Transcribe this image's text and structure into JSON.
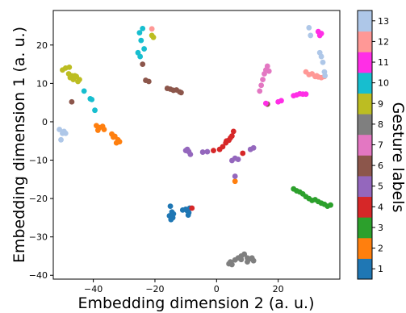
{
  "chart_data": {
    "type": "scatter",
    "xlabel": "Embedding dimension 2 (a. u.)",
    "ylabel": "Embedding dimension 1 (a. u.)",
    "xlim": [
      -53,
      40
    ],
    "ylim": [
      -41,
      29
    ],
    "xticks": [
      -40,
      -20,
      0,
      20
    ],
    "yticks": [
      -40,
      -30,
      -20,
      -10,
      0,
      10,
      20
    ],
    "colorbar": {
      "label": "Gesture labels",
      "ticks": [
        1,
        2,
        3,
        4,
        5,
        6,
        7,
        8,
        9,
        10,
        11,
        12,
        13
      ]
    },
    "colors": {
      "1": "#1f77b4",
      "2": "#ff7f0e",
      "3": "#2ca02c",
      "4": "#d62728",
      "5": "#9467bd",
      "6": "#8c564b",
      "7": "#e377c2",
      "8": "#7f7f7f",
      "9": "#bcbd22",
      "10": "#17becf",
      "11": "#ff2ee6",
      "12": "#ff9896",
      "13": "#aec7e8"
    },
    "series": [
      {
        "label": 1,
        "x": [
          -15,
          -14.5,
          -14,
          -14.2,
          -15.3,
          -14.8,
          -11,
          -10,
          -9.5,
          -9,
          -9.2,
          -8.7
        ],
        "y": [
          -22,
          -23.5,
          -24,
          -25,
          -24.5,
          -25.5,
          -23,
          -22.8,
          -23.2,
          -23.7,
          -24.3,
          -22.5
        ]
      },
      {
        "label": 2,
        "x": [
          -39,
          -38,
          -37,
          -36.5,
          -38.5,
          -34,
          -33.5,
          -33,
          -32,
          -31.5,
          -32.5,
          6
        ],
        "y": [
          -1,
          -1.5,
          -1.2,
          -2,
          -2.2,
          -3.2,
          -4,
          -3.8,
          -4.7,
          -5.2,
          -5.5,
          -15.5
        ]
      },
      {
        "label": 3,
        "x": [
          25,
          26,
          27,
          28,
          29,
          30,
          31,
          32,
          33,
          34,
          35,
          36,
          37
        ],
        "y": [
          -17.5,
          -18,
          -18.3,
          -18.8,
          -19.5,
          -20,
          -20.5,
          -20.3,
          -20.8,
          -21.2,
          -21.5,
          -22,
          -21.7
        ]
      },
      {
        "label": 4,
        "x": [
          -1,
          1,
          2,
          3,
          4,
          5,
          5.5,
          4.5,
          3.2,
          8.5,
          -8
        ],
        "y": [
          -7.5,
          -7.2,
          -6.5,
          -5.5,
          -4.8,
          -3.7,
          -2.5,
          -4.2,
          -5,
          -8.2,
          -22.5
        ]
      },
      {
        "label": 5,
        "x": [
          -10,
          -9,
          -8.5,
          -9.5,
          -4.5,
          -3,
          5,
          6,
          7,
          11,
          12,
          6
        ],
        "y": [
          -7.5,
          -7.8,
          -8.5,
          -7.2,
          -7.9,
          -7.8,
          -10.1,
          -9.5,
          -9.8,
          -7.2,
          -6.8,
          -14.2
        ]
      },
      {
        "label": 6,
        "x": [
          -47,
          -24,
          -23,
          -22,
          -16,
          -15,
          -14,
          -13,
          -12,
          -11.5,
          16.5
        ],
        "y": [
          5.2,
          15,
          10.8,
          10.5,
          8.7,
          8.5,
          8.2,
          8.3,
          7.8,
          7.6,
          4.6
        ]
      },
      {
        "label": 7,
        "x": [
          14,
          14.5,
          15,
          15.5,
          16,
          16.5,
          17
        ],
        "y": [
          8,
          9.5,
          11,
          12.5,
          13.5,
          14.5,
          13.2
        ]
      },
      {
        "label": 8,
        "x": [
          4,
          4.5,
          5,
          6,
          7,
          8,
          9,
          10,
          11,
          12,
          8,
          10,
          11.5
        ],
        "y": [
          -37,
          -36.5,
          -37.2,
          -36,
          -35.5,
          -35,
          -34.5,
          -35.5,
          -35.7,
          -36.2,
          -35.9,
          -36.5,
          -35.5
        ]
      },
      {
        "label": 9,
        "x": [
          -50,
          -49,
          -48,
          -47.5,
          -47,
          -46.5,
          -46,
          -45.5,
          -45,
          -44.5,
          -21,
          -20.5,
          -47.8
        ],
        "y": [
          13.5,
          14,
          12.5,
          11.5,
          12,
          11,
          12,
          11.8,
          10.5,
          11,
          22.5,
          22,
          14.2
        ]
      },
      {
        "label": 10,
        "x": [
          -25,
          -24,
          -24.5,
          -23.5,
          -25.5,
          -24.8,
          -43,
          -41,
          -40.5,
          -39.5
        ],
        "y": [
          23.2,
          24.3,
          21.2,
          19,
          18,
          17,
          8,
          6,
          5.8,
          3
        ]
      },
      {
        "label": 11,
        "x": [
          16,
          20,
          21,
          25,
          26,
          27,
          28,
          29,
          33,
          33.5,
          34
        ],
        "y": [
          4.8,
          5.2,
          5.5,
          6.8,
          7,
          7.3,
          7.2,
          7.2,
          23.5,
          22.5,
          23
        ]
      },
      {
        "label": 12,
        "x": [
          -21,
          29,
          30,
          31,
          32,
          32.5,
          33,
          34,
          35
        ],
        "y": [
          24.2,
          13,
          12.3,
          12.5,
          11.8,
          12,
          11.7,
          11.5,
          11.8
        ]
      },
      {
        "label": 13,
        "x": [
          -51,
          -50,
          -49.5,
          -50.5,
          -49,
          30,
          30.5,
          33.5,
          34,
          34.5,
          35,
          35.2
        ],
        "y": [
          -2,
          -3,
          -2.5,
          -4.7,
          -3,
          24.5,
          22.5,
          18,
          17,
          15.5,
          13,
          12
        ]
      }
    ]
  }
}
